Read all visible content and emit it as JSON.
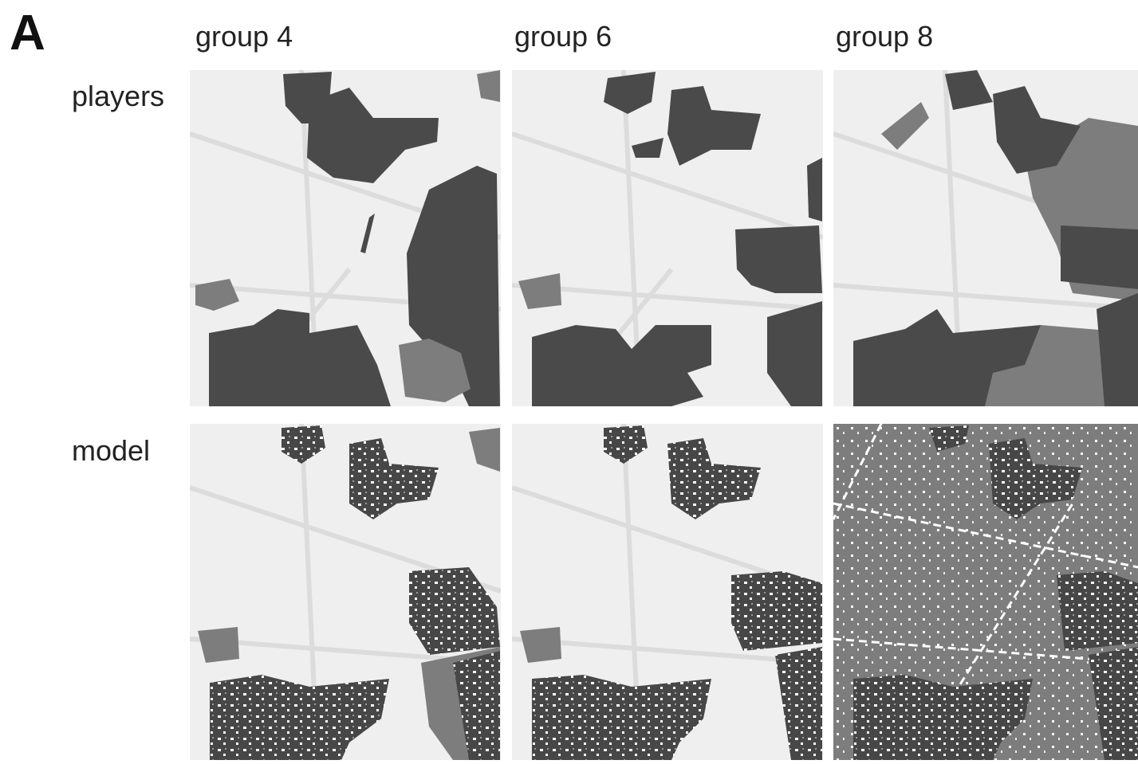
{
  "panel_label": "A",
  "columns": [
    "group 4",
    "group 6",
    "group 8"
  ],
  "rows": [
    "players",
    "model"
  ]
}
